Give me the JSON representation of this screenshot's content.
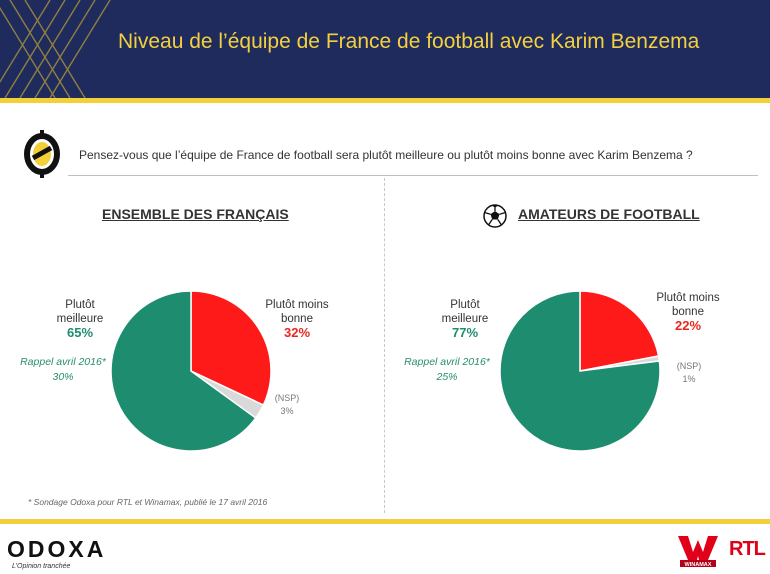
{
  "header": {
    "title": "Niveau de l’équipe de France de football avec Karim Benzema"
  },
  "question": "Pensez-vous que l’équipe de France de football sera plutôt meilleure ou plutôt moins bonne avec Karim Benzema ?",
  "colors": {
    "navy": "#1e2b5c",
    "gold": "#f3cf3a",
    "green": "#1e8c6e",
    "red": "#ff1a1a",
    "nsp": "#d9d9d9"
  },
  "icons": [
    "odoxa-o-icon",
    "football-icon"
  ],
  "chart_data": [
    {
      "type": "pie",
      "title": "ENSEMBLE DES FRANÇAIS",
      "slices": [
        {
          "label": "Plutôt moins bonne",
          "value": 32,
          "value_label": "32%",
          "color": "#ff1a1a"
        },
        {
          "label": "(NSP)",
          "value": 3,
          "value_label": "3%",
          "color": "#d9d9d9"
        },
        {
          "label": "Plutôt meilleure",
          "value": 65,
          "value_label": "65%",
          "color": "#1e8c6e"
        }
      ],
      "rappel": {
        "label": "Rappel avril 2016*",
        "value_label": "30%"
      }
    },
    {
      "type": "pie",
      "title": "AMATEURS DE FOOTBALL",
      "slices": [
        {
          "label": "Plutôt moins bonne",
          "value": 22,
          "value_label": "22%",
          "color": "#ff1a1a"
        },
        {
          "label": "(NSP)",
          "value": 1,
          "value_label": "1%",
          "color": "#d9d9d9"
        },
        {
          "label": "Plutôt meilleure",
          "value": 77,
          "value_label": "77%",
          "color": "#1e8c6e"
        }
      ],
      "rappel": {
        "label": "Rappel avril 2016*",
        "value_label": "25%"
      }
    }
  ],
  "footnote": "* Sondage Odoxa pour RTL et Winamax, publié le 17 avril 2016",
  "footer": {
    "logo": "ODOXA",
    "tagline": "L’Opinion tranchée",
    "partner1": "WINAMAX",
    "partner2": "RTL"
  }
}
